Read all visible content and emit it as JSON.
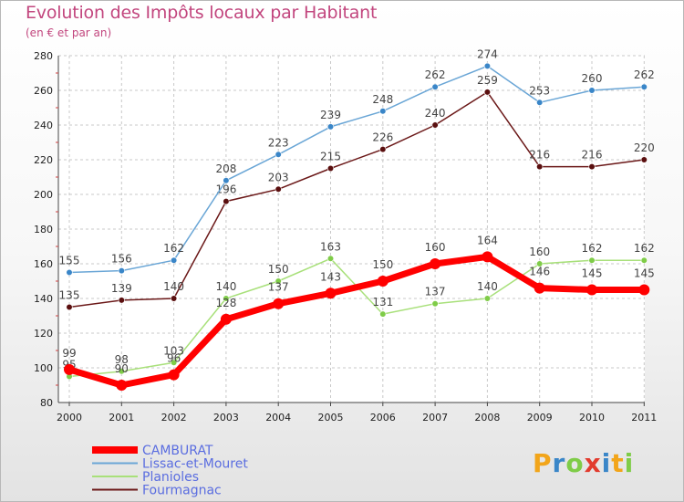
{
  "chart_data": {
    "type": "line",
    "title": "Evolution des Impôts locaux par Habitant",
    "subtitle": "(en € et par an)",
    "xlabel": "",
    "ylabel": "",
    "categories": [
      "2000",
      "2001",
      "2002",
      "2003",
      "2004",
      "2005",
      "2006",
      "2007",
      "2008",
      "2009",
      "2010",
      "2011"
    ],
    "ylim": [
      80,
      280
    ],
    "yticks": [
      80,
      100,
      120,
      140,
      160,
      180,
      200,
      220,
      240,
      260,
      280
    ],
    "grid": true,
    "legend_position": "bottom-left",
    "series": [
      {
        "name": "Fourmagnac",
        "color": "#6b1818",
        "marker": "#5a0f0f",
        "values": [
          135,
          139,
          140,
          196,
          203,
          215,
          226,
          240,
          259,
          216,
          216,
          220
        ]
      },
      {
        "name": "Lissac-et-Mouret",
        "color": "#6aa6d6",
        "marker": "#3a86c8",
        "values": [
          155,
          156,
          162,
          208,
          223,
          239,
          248,
          262,
          274,
          253,
          260,
          262
        ]
      },
      {
        "name": "Planioles",
        "color": "#a8e07a",
        "marker": "#7fcc48",
        "values": [
          95,
          98,
          103,
          140,
          150,
          163,
          131,
          137,
          140,
          160,
          162,
          162
        ]
      },
      {
        "name": "CAMBURAT",
        "color": "#ff0000",
        "marker": "#ff0000",
        "values": [
          99,
          90,
          96,
          128,
          137,
          143,
          150,
          160,
          164,
          146,
          145,
          145
        ]
      }
    ],
    "legend_order": [
      "CAMBURAT",
      "Lissac-et-Mouret",
      "Planioles",
      "Fourmagnac"
    ],
    "legend_text_color": "#5a6de0"
  },
  "logo": {
    "letters": [
      "P",
      "r",
      "o",
      "x",
      "i",
      "t",
      "i"
    ],
    "colors": [
      "#f2a51a",
      "#3a86c8",
      "#7fcc48",
      "#e23b2e",
      "#3a86c8",
      "#f2a51a",
      "#7fcc48"
    ]
  }
}
